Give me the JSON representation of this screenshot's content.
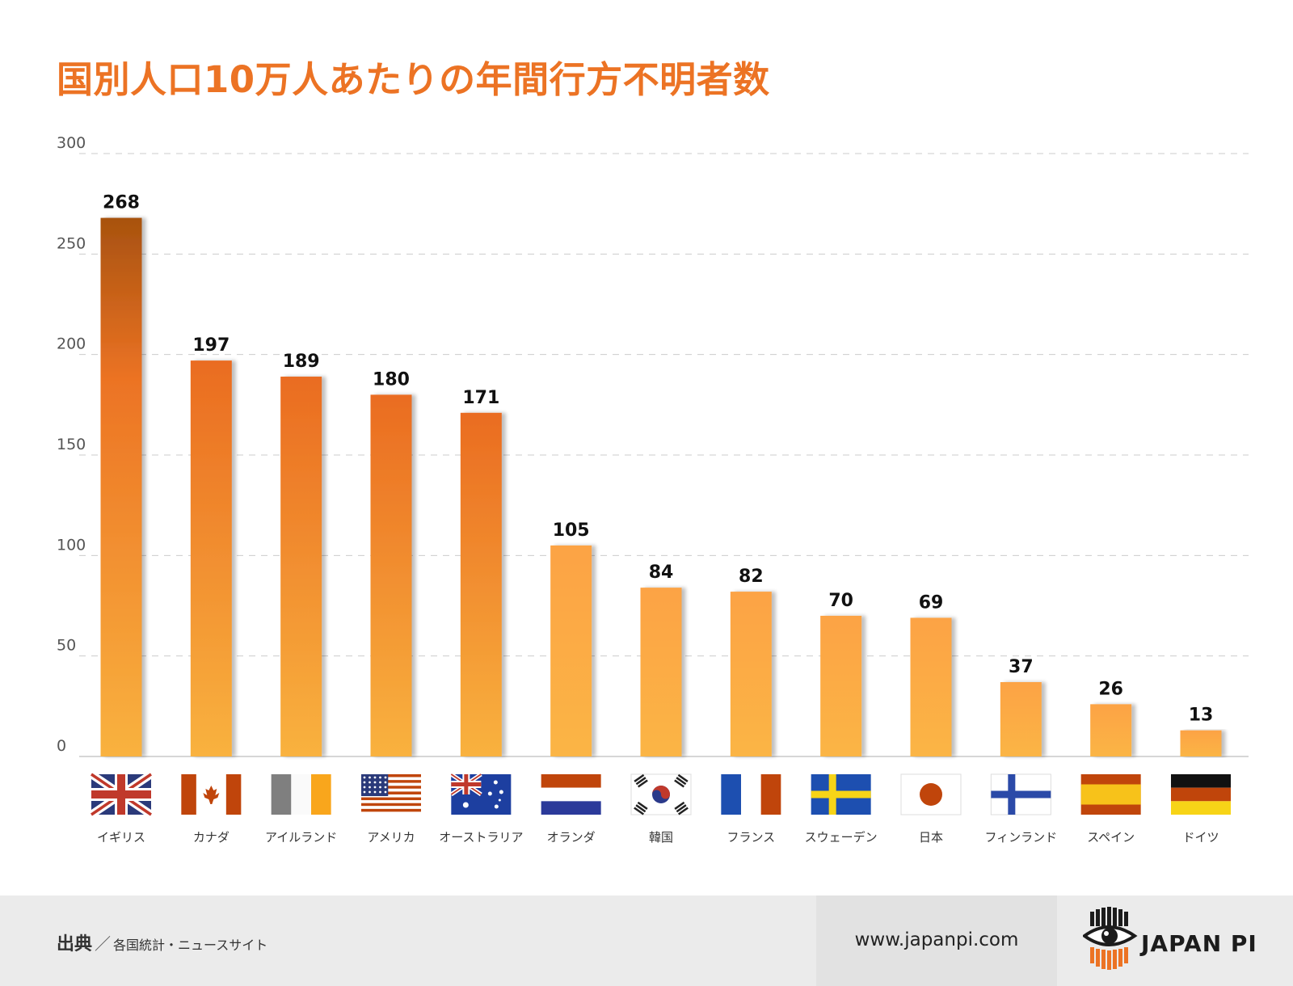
{
  "title": "国別人口10万人あたりの年間行方不明者数",
  "chart_data": {
    "type": "bar",
    "title": "国別人口10万人あたりの年間行方不明者数",
    "categories": [
      "イギリス",
      "カナダ",
      "アイルランド",
      "アメリカ",
      "オーストラリア",
      "オランダ",
      "韓国",
      "フランス",
      "スウェーデン",
      "日本",
      "フィンランド",
      "スペイン",
      "ドイツ"
    ],
    "values": [
      268,
      197,
      189,
      180,
      171,
      105,
      84,
      82,
      70,
      69,
      37,
      26,
      13
    ],
    "ylim": [
      0,
      300
    ],
    "yticks": [
      0,
      50,
      100,
      150,
      200,
      250,
      300
    ],
    "grid": true,
    "xlabel": "",
    "ylabel": ""
  },
  "flags": [
    "uk",
    "canada",
    "ireland",
    "usa",
    "australia",
    "netherlands",
    "korea",
    "france",
    "sweden",
    "japan",
    "finland",
    "spain",
    "germany"
  ],
  "colors": {
    "title": "#ec7324",
    "bar_dark": "#a8520f",
    "bar_mid": "#ec7324",
    "bar_light": "#f9b23f",
    "bar_flat_top": "#fca345",
    "bar_flat_bottom": "#fbb545"
  },
  "footer": {
    "source_label": "出典",
    "source_slash": "／",
    "source_text": "各国統計・ニュースサイト",
    "website": "www.japanpi.com",
    "logo_text": "JAPAN PI"
  }
}
